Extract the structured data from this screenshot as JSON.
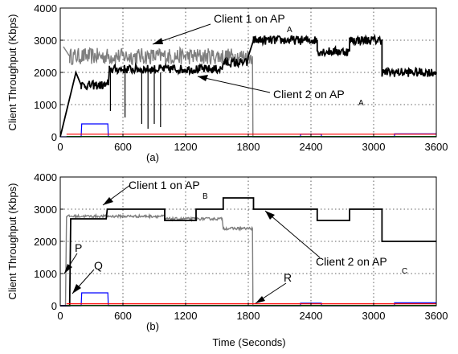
{
  "chart_data": [
    {
      "type": "line",
      "panel_label": "(a)",
      "ylabel": "Client Throughput (Kbps)",
      "xlim": [
        0,
        3600
      ],
      "ylim": [
        0,
        4000
      ],
      "x_ticks": [
        0,
        600,
        1200,
        1800,
        2400,
        3000,
        3600
      ],
      "y_ticks": [
        0,
        1000,
        2000,
        3000,
        4000
      ],
      "grid": true,
      "annotations": [
        {
          "text": "Client 1 on AP",
          "sub": "A"
        },
        {
          "text": "Client 2 on AP",
          "sub": "A"
        }
      ],
      "series": [
        {
          "color": "#7f7f7f",
          "noise": 260,
          "steps": [
            [
              30,
              2800
            ],
            [
              90,
              2500
            ],
            [
              1840,
              2500
            ],
            [
              1845,
              0
            ],
            [
              3600,
              0
            ]
          ]
        },
        {
          "color": "#000000",
          "noise": 140,
          "steps": [
            [
              0,
              0
            ],
            [
              150,
              2000
            ],
            [
              200,
              1600
            ],
            [
              460,
              1600
            ],
            [
              470,
              2100
            ],
            [
              1550,
              2100
            ],
            [
              1560,
              2300
            ],
            [
              1790,
              2300
            ],
            [
              1800,
              2500
            ],
            [
              1850,
              3000
            ],
            [
              2460,
              3000
            ],
            [
              2460,
              2650
            ],
            [
              2770,
              2650
            ],
            [
              2770,
              3000
            ],
            [
              3080,
              3000
            ],
            [
              3080,
              2000
            ],
            [
              3600,
              2000
            ]
          ]
        },
        {
          "color": "#0000ff",
          "noise": 0,
          "steps": [
            [
              0,
              0
            ],
            [
              200,
              0
            ],
            [
              205,
              400
            ],
            [
              455,
              400
            ],
            [
              460,
              0
            ],
            [
              2300,
              0
            ],
            [
              2300,
              80
            ],
            [
              2500,
              80
            ],
            [
              2500,
              0
            ],
            [
              3200,
              0
            ],
            [
              3200,
              90
            ],
            [
              3600,
              90
            ]
          ]
        },
        {
          "color": "#ff0000",
          "noise": 0,
          "steps": [
            [
              60,
              80
            ],
            [
              3600,
              80
            ]
          ]
        },
        {
          "color": "#008000",
          "noise": 0,
          "steps": [
            [
              60,
              10
            ],
            [
              3600,
              10
            ]
          ]
        }
      ]
    },
    {
      "type": "line",
      "panel_label": "(b)",
      "ylabel": "Client Throughput (Kbps)",
      "xlabel": "Time (Seconds)",
      "xlim": [
        0,
        3600
      ],
      "ylim": [
        0,
        4000
      ],
      "x_ticks": [
        0,
        600,
        1200,
        1800,
        2400,
        3000,
        3600
      ],
      "y_ticks": [
        0,
        1000,
        2000,
        3000,
        4000
      ],
      "grid": true,
      "annotations": [
        {
          "text": "Client 1 on AP",
          "sub": "B"
        },
        {
          "text": "Client 2 on AP",
          "sub": "C"
        },
        {
          "text": "P"
        },
        {
          "text": "Q"
        },
        {
          "text": "R"
        }
      ],
      "series": [
        {
          "color": "#7f7f7f",
          "noise": 40,
          "steps": [
            [
              0,
              0
            ],
            [
              50,
              0
            ],
            [
              60,
              2780
            ],
            [
              1000,
              2780
            ],
            [
              1000,
              2700
            ],
            [
              1550,
              2700
            ],
            [
              1560,
              2400
            ],
            [
              1840,
              2400
            ],
            [
              1845,
              0
            ],
            [
              3600,
              0
            ]
          ]
        },
        {
          "color": "#000000",
          "noise": 0,
          "steps": [
            [
              0,
              0
            ],
            [
              90,
              0
            ],
            [
              100,
              2700
            ],
            [
              440,
              2700
            ],
            [
              450,
              3000
            ],
            [
              1000,
              3000
            ],
            [
              1000,
              2650
            ],
            [
              1300,
              2650
            ],
            [
              1300,
              3000
            ],
            [
              1560,
              3000
            ],
            [
              1560,
              3350
            ],
            [
              1850,
              3350
            ],
            [
              1850,
              3000
            ],
            [
              2460,
              3000
            ],
            [
              2460,
              2650
            ],
            [
              2770,
              2650
            ],
            [
              2770,
              3000
            ],
            [
              3080,
              3000
            ],
            [
              3080,
              2000
            ],
            [
              3600,
              2000
            ]
          ]
        },
        {
          "color": "#0000ff",
          "noise": 0,
          "steps": [
            [
              0,
              0
            ],
            [
              200,
              0
            ],
            [
              205,
              400
            ],
            [
              455,
              400
            ],
            [
              460,
              0
            ],
            [
              2300,
              0
            ],
            [
              2300,
              80
            ],
            [
              2500,
              80
            ],
            [
              2500,
              0
            ],
            [
              3200,
              0
            ],
            [
              3200,
              90
            ],
            [
              3600,
              90
            ]
          ]
        },
        {
          "color": "#ff0000",
          "noise": 0,
          "steps": [
            [
              60,
              60
            ],
            [
              3600,
              60
            ]
          ]
        },
        {
          "color": "#008000",
          "noise": 0,
          "steps": [
            [
              60,
              10
            ],
            [
              3600,
              10
            ]
          ]
        }
      ]
    }
  ]
}
